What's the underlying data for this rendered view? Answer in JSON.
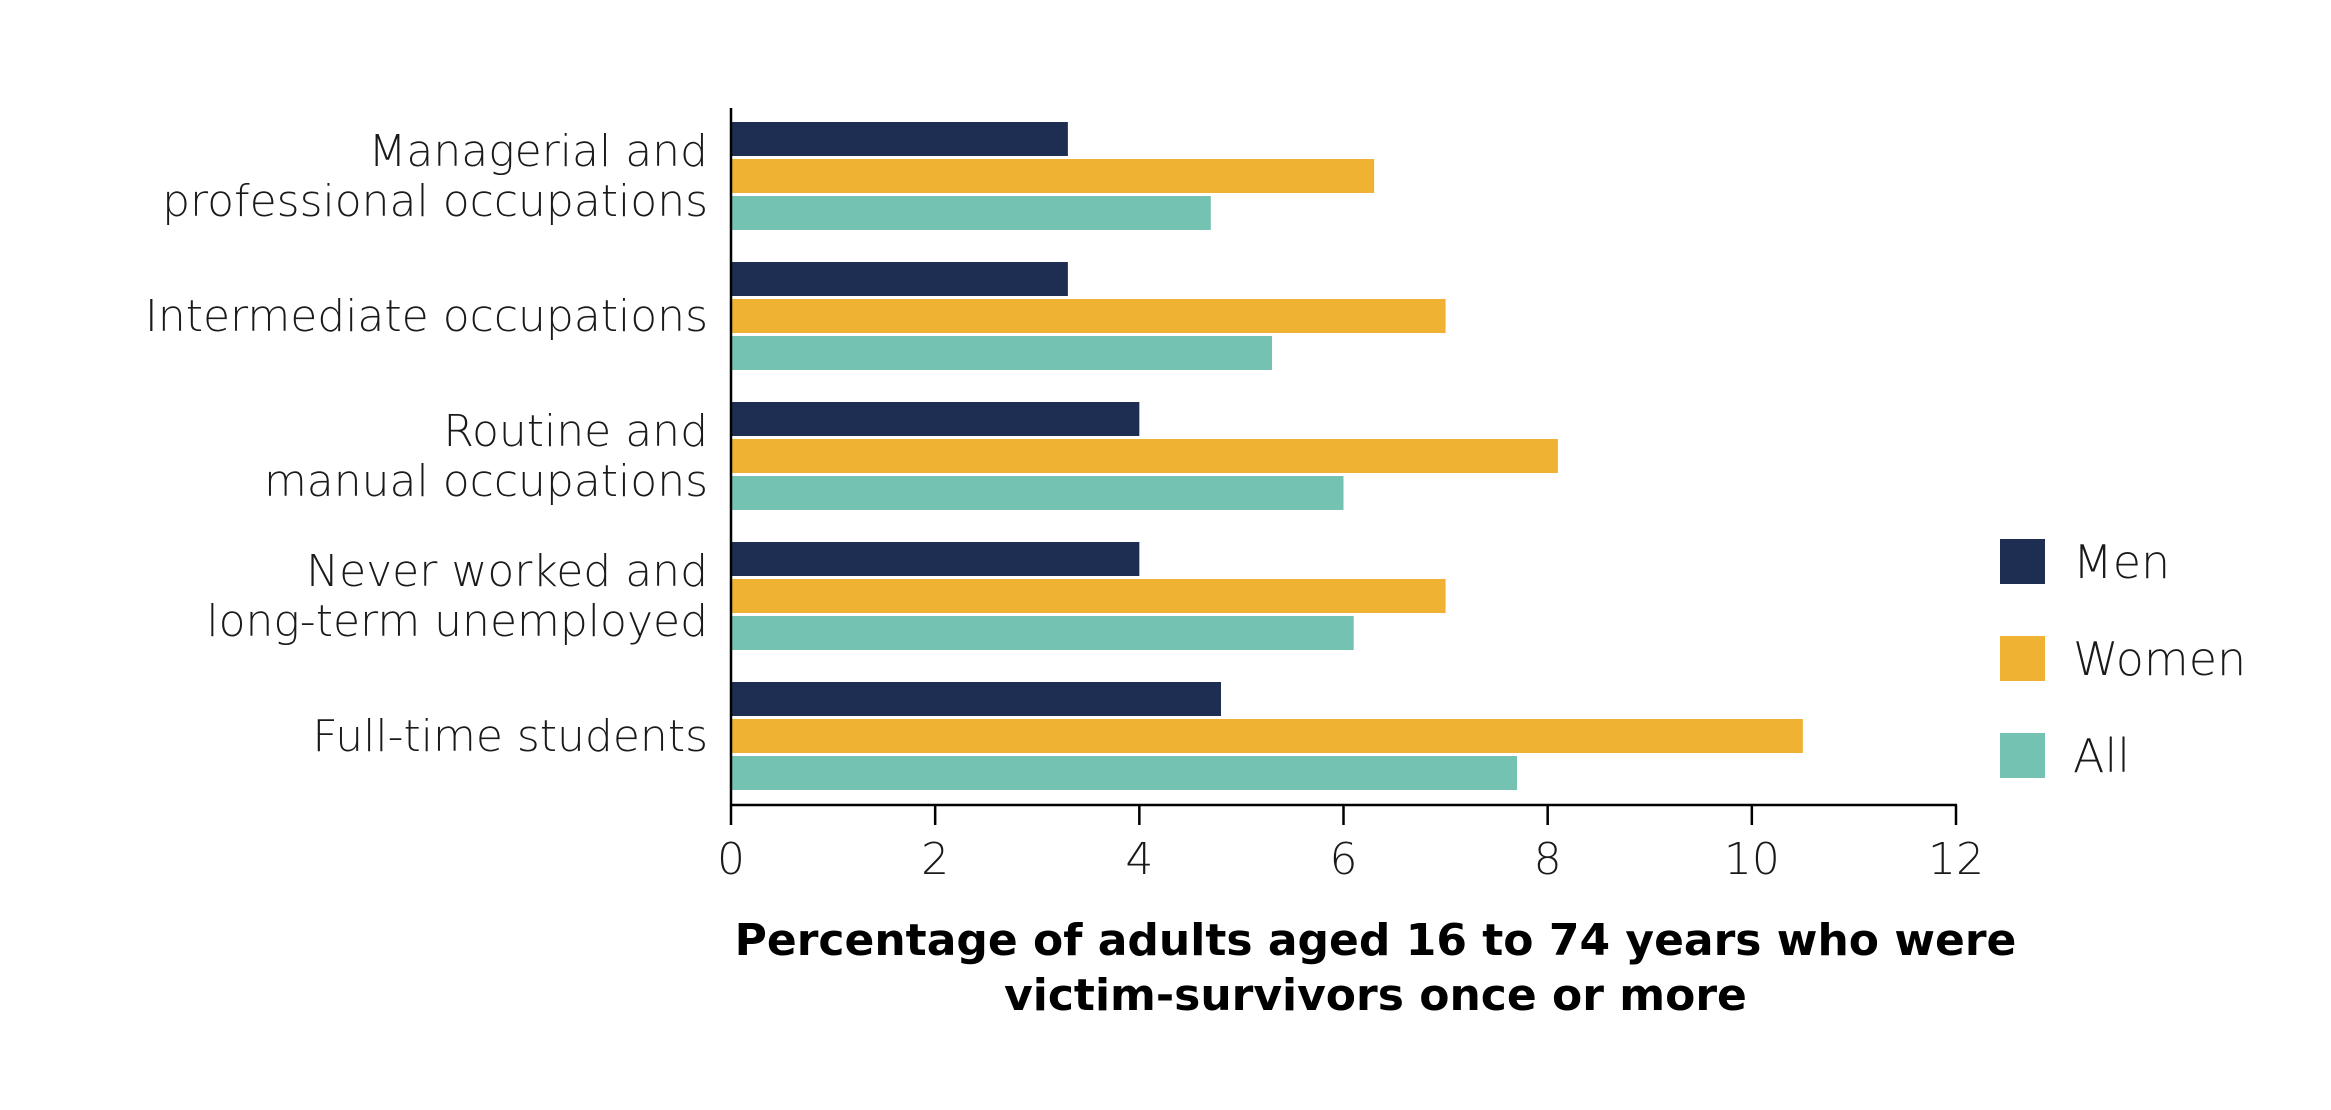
{
  "chart_data": {
    "type": "bar",
    "orientation": "horizontal",
    "categories": [
      [
        "Managerial and",
        "professional occupations"
      ],
      [
        "Intermediate occupations"
      ],
      [
        "Routine and",
        "manual occupations"
      ],
      [
        "Never worked and",
        "long-term unemployed"
      ],
      [
        "Full-time students"
      ]
    ],
    "series": [
      {
        "name": "Men",
        "color": "#1e2d52",
        "values": [
          3.3,
          3.3,
          4.0,
          4.0,
          4.8
        ]
      },
      {
        "name": "Women",
        "color": "#f0b233",
        "values": [
          6.3,
          7.0,
          8.1,
          7.0,
          10.5
        ]
      },
      {
        "name": "All",
        "color": "#74c2b2",
        "values": [
          4.7,
          5.3,
          6.0,
          6.1,
          7.7
        ]
      }
    ],
    "xlabel": [
      "Percentage of adults aged 16 to 74 years who were",
      "victim-survivors once or more"
    ],
    "ylabel": "",
    "title": "",
    "xlim": [
      0,
      12
    ],
    "xticks": [
      0,
      2,
      4,
      6,
      8,
      10,
      12
    ],
    "grid": false,
    "legend_position": "right"
  }
}
